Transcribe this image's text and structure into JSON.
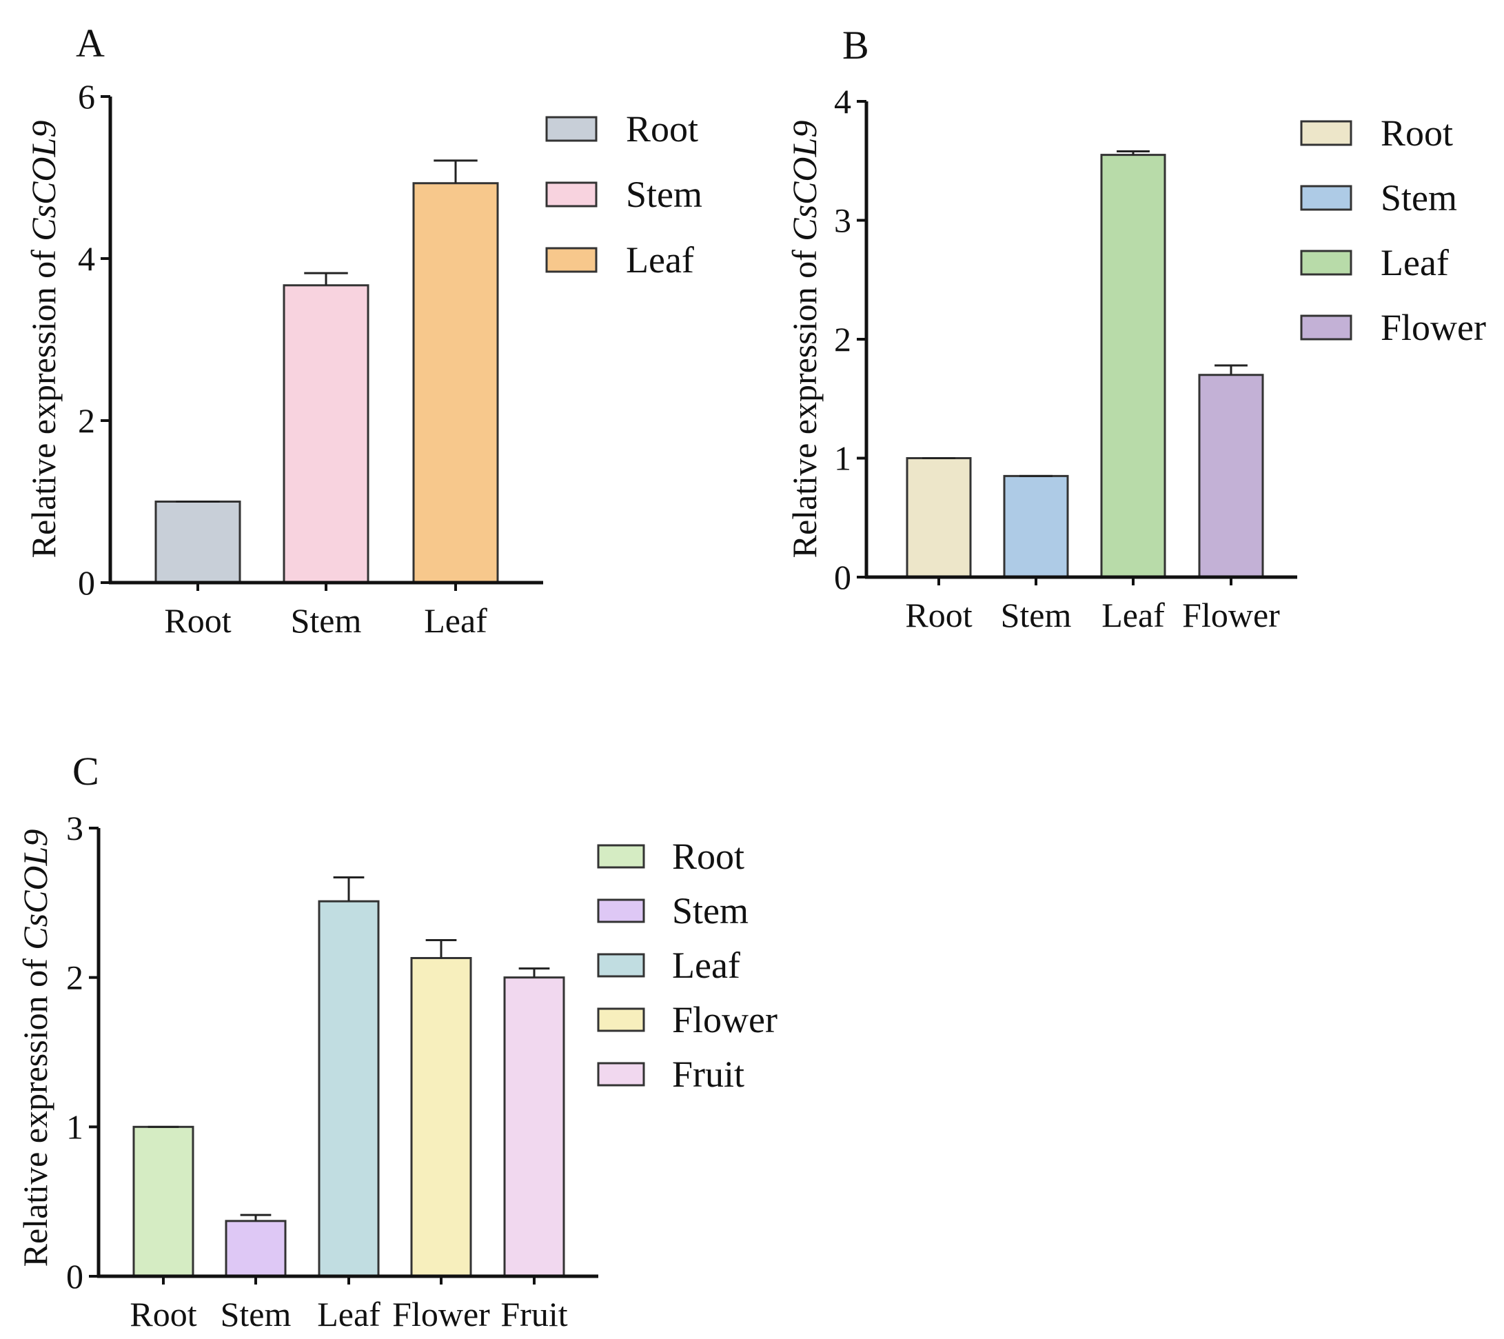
{
  "figure": {
    "colors": {
      "axis": "#111111",
      "bar_stroke": "#333333",
      "error": "#222222"
    }
  },
  "chart_data": [
    {
      "panel": "A",
      "type": "bar",
      "title": "",
      "xlabel": "",
      "ylabel_prefix": "Relative expression of ",
      "ylabel_gene": "CsCOL9",
      "ylim": [
        0,
        6
      ],
      "yticks": [
        0,
        2,
        4,
        6
      ],
      "ytick_labels": [
        "0",
        "2",
        "4",
        "6"
      ],
      "legend_position": "top-right",
      "categories": [
        "Root",
        "Stem",
        "Leaf"
      ],
      "values": [
        1.0,
        3.67,
        4.93
      ],
      "errors": [
        0.0,
        0.15,
        0.28
      ],
      "colors": [
        "#c8cfd8",
        "#f8d3df",
        "#f7c88c"
      ]
    },
    {
      "panel": "B",
      "type": "bar",
      "title": "",
      "xlabel": "",
      "ylabel_prefix": "Relative expression of ",
      "ylabel_gene": "CsCOL9",
      "ylim": [
        0,
        4
      ],
      "yticks": [
        0,
        1,
        2,
        3,
        4
      ],
      "ytick_labels": [
        "0",
        "1",
        "2",
        "3",
        "4"
      ],
      "legend_position": "top-right",
      "categories": [
        "Root",
        "Stem",
        "Leaf",
        "Flower"
      ],
      "values": [
        1.0,
        0.85,
        3.55,
        1.7
      ],
      "errors": [
        0.0,
        0.0,
        0.03,
        0.08
      ],
      "colors": [
        "#ede6c9",
        "#aecbe6",
        "#b8dba9",
        "#c3b1d6"
      ]
    },
    {
      "panel": "C",
      "type": "bar",
      "title": "",
      "xlabel": "",
      "ylabel_prefix": "Relative expression of ",
      "ylabel_gene": "CsCOL9",
      "ylim": [
        0,
        3
      ],
      "yticks": [
        0,
        1,
        2,
        3
      ],
      "ytick_labels": [
        "0",
        "1",
        "2",
        "3"
      ],
      "legend_position": "top-right",
      "categories": [
        "Root",
        "Stem",
        "Leaf",
        "Flower",
        "Fruit"
      ],
      "values": [
        1.0,
        0.37,
        2.51,
        2.13,
        2.0
      ],
      "errors": [
        0.0,
        0.04,
        0.16,
        0.12,
        0.06
      ],
      "colors": [
        "#d5ecc3",
        "#dec8f5",
        "#c1dde1",
        "#f7efbd",
        "#f1d8ef"
      ]
    }
  ]
}
